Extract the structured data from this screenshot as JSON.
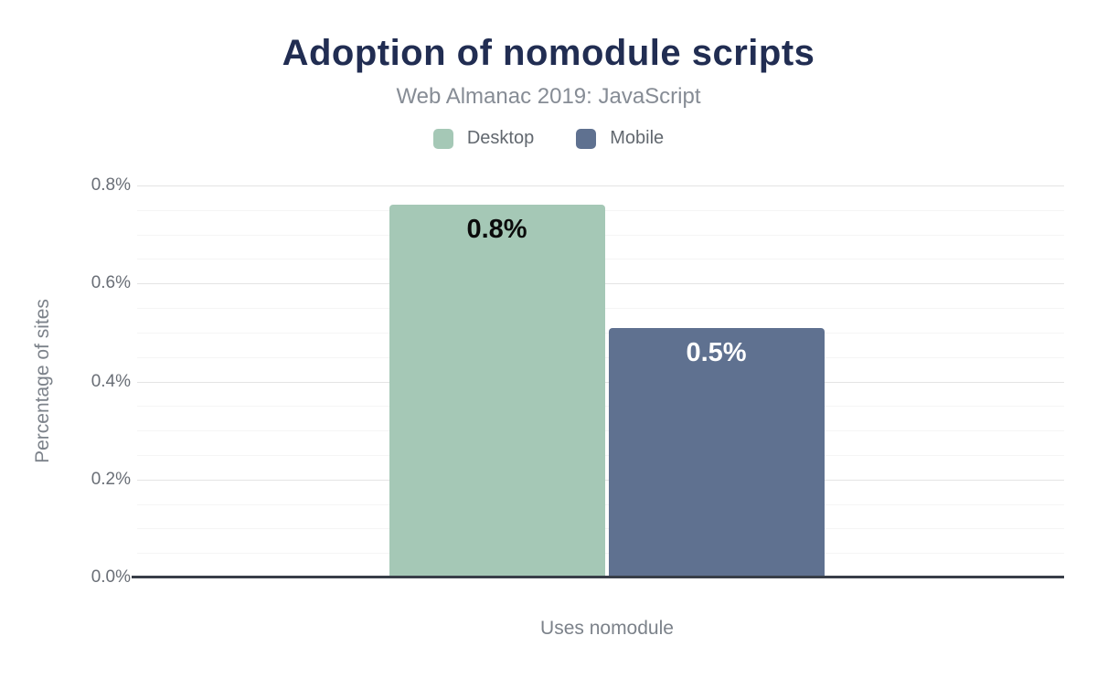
{
  "chart_data": {
    "type": "bar",
    "title": "Adoption of nomodule scripts",
    "subtitle": "Web Almanac 2019: JavaScript",
    "categories": [
      "Uses nomodule"
    ],
    "series": [
      {
        "name": "Desktop",
        "values": [
          0.76
        ],
        "data_labels": [
          "0.8%"
        ],
        "color": "#a5c8b6",
        "label_color": "#0b0b0b"
      },
      {
        "name": "Mobile",
        "values": [
          0.51
        ],
        "data_labels": [
          "0.5%"
        ],
        "color": "#5f7190",
        "label_color": "#ffffff"
      }
    ],
    "xlabel": "",
    "ylabel": "Percentage of sites",
    "ylim": [
      0,
      0.8
    ],
    "yticks": [
      {
        "value": 0.0,
        "label": "0.0%"
      },
      {
        "value": 0.2,
        "label": "0.2%"
      },
      {
        "value": 0.4,
        "label": "0.4%"
      },
      {
        "value": 0.6,
        "label": "0.6%"
      },
      {
        "value": 0.8,
        "label": "0.8%"
      }
    ],
    "minor_grid_step": 0.05,
    "grid": "horizontal",
    "legend_position": "top",
    "colors": {
      "background": "#ffffff",
      "title": "#212d52",
      "subtitle": "#868c95",
      "legend_text": "#62686f",
      "tick_text": "#696e76",
      "axis_title_text": "#7c828a",
      "baseline": "#383e48",
      "grid_major": "#e4e4e4",
      "grid_minor": "#f5f5f5"
    }
  }
}
